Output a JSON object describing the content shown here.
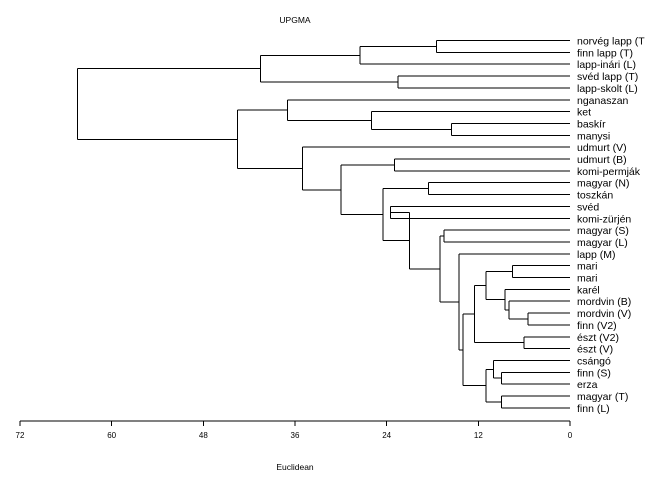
{
  "chart_data": {
    "type": "dendrogram",
    "title": "UPGMA",
    "xlabel": "Euclidean",
    "xlim": [
      72,
      0
    ],
    "xticks": [
      "72",
      "60",
      "48",
      "36",
      "24",
      "12",
      "0"
    ],
    "leaves": [
      "norvég lapp (T",
      "finn lapp (T)",
      "lapp-inári (L)",
      "svéd lapp (T)",
      "lapp-skolt (L)",
      "nganaszan",
      "ket",
      "baskír",
      "manysi",
      "udmurt (V)",
      "udmurt (B)",
      "komi-permják",
      "magyar (N)",
      "toszkán",
      "svéd",
      "komi-zürjén",
      "magyar (S)",
      "magyar (L)",
      "lapp (M)",
      "mari",
      "mari",
      "karél",
      "mordvin (B)",
      "mordvin (V)",
      "finn (V2)",
      "észt (V2)",
      "észt (V)",
      "csángó",
      "finn (S)",
      "erza",
      "magyar (T)",
      "finn (L)"
    ],
    "merges": [
      {
        "a": "L0",
        "b": "L1",
        "h": 17.5,
        "id": "N1"
      },
      {
        "a": "N1",
        "b": "L2",
        "h": 27.5,
        "id": "N2"
      },
      {
        "a": "L3",
        "b": "L4",
        "h": 22.5,
        "id": "N3"
      },
      {
        "a": "N2",
        "b": "N3",
        "h": 40.5,
        "id": "N4"
      },
      {
        "a": "L8",
        "b": "L7",
        "h": 15.5,
        "id": "N5"
      },
      {
        "a": "N5",
        "b": "L6",
        "h": 26.0,
        "id": "N6"
      },
      {
        "a": "L5",
        "b": "N6",
        "h": 37.0,
        "id": "N7"
      },
      {
        "a": "L10",
        "b": "L11",
        "h": 23.0,
        "id": "N8"
      },
      {
        "a": "L12",
        "b": "L13",
        "h": 18.5,
        "id": "N9"
      },
      {
        "a": "L15",
        "b": "L14",
        "h": 23.5,
        "id": "N10"
      },
      {
        "a": "L16",
        "b": "L17",
        "h": 16.5,
        "id": "N11"
      },
      {
        "a": "L19",
        "b": "L20",
        "h": 7.5,
        "id": "N12"
      },
      {
        "a": "L24",
        "b": "L23",
        "h": 5.5,
        "id": "N13"
      },
      {
        "a": "L22",
        "b": "N13",
        "h": 8.0,
        "id": "N14"
      },
      {
        "a": "N14",
        "b": "L21",
        "h": 8.5,
        "id": "N15"
      },
      {
        "a": "N12",
        "b": "N15",
        "h": 11.0,
        "id": "N16"
      },
      {
        "a": "L26",
        "b": "L25",
        "h": 6.0,
        "id": "N17"
      },
      {
        "a": "N16",
        "b": "N17",
        "h": 12.5,
        "id": "N18"
      },
      {
        "a": "L29",
        "b": "L28",
        "h": 9.0,
        "id": "N19"
      },
      {
        "a": "N19",
        "b": "L27",
        "h": 10.0,
        "id": "N20"
      },
      {
        "a": "L30",
        "b": "L31",
        "h": 9.0,
        "id": "N21"
      },
      {
        "a": "N20",
        "b": "N21",
        "h": 11.0,
        "id": "N22"
      },
      {
        "a": "N18",
        "b": "N22",
        "h": 14.0,
        "id": "N23"
      },
      {
        "a": "L18",
        "b": "N23",
        "h": 14.5,
        "id": "N24"
      },
      {
        "a": "N11",
        "b": "N24",
        "h": 17.0,
        "id": "N25"
      },
      {
        "a": "N10",
        "b": "N25",
        "h": 21.0,
        "id": "N26"
      },
      {
        "a": "N9",
        "b": "N26",
        "h": 24.5,
        "id": "N27"
      },
      {
        "a": "N8",
        "b": "N27",
        "h": 30.0,
        "id": "N28"
      },
      {
        "a": "L9",
        "b": "N28",
        "h": 35.0,
        "id": "N29"
      },
      {
        "a": "N7",
        "b": "N29",
        "h": 43.5,
        "id": "N30"
      },
      {
        "a": "N4",
        "b": "N30",
        "h": 64.5,
        "id": "N31"
      }
    ]
  }
}
